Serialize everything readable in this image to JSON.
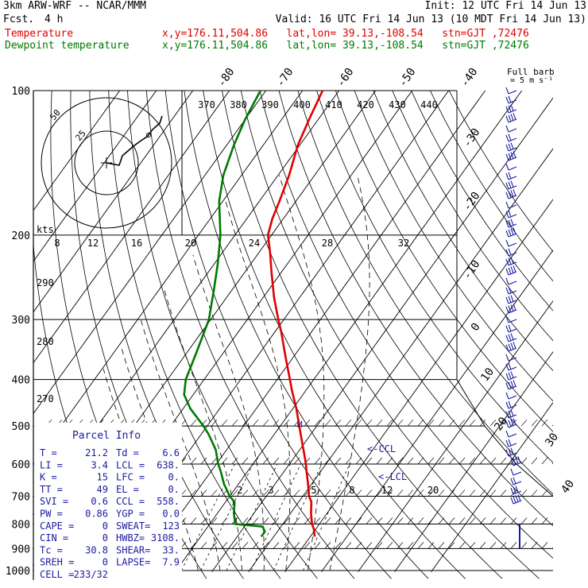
{
  "header": {
    "model": "3km ARW-WRF -- NCAR/MMM",
    "init": "Init: 12 UTC Fri 14 Jun 13",
    "fcst_label": "Fcst.",
    "fcst_value": "4 h",
    "valid": "Valid: 16 UTC Fri 14 Jun 13 (10 MDT Fri 14 Jun 13)",
    "line_temp": {
      "name": "Temperature",
      "loc": "x,y=176.11,504.86   lat,lon= 39.13,-108.54   stn=GJT ,72476"
    },
    "line_dew": {
      "name": "Dewpoint temperature",
      "loc": "x,y=176.11,504.86   lat,lon= 39.13,-108.54   stn=GJT ,72476"
    },
    "colors": {
      "temperature": "#e00000",
      "dewpoint": "#007a00",
      "wind": "#1a1aa0"
    }
  },
  "chart_data": {
    "type": "line",
    "title": "",
    "xlabel": "",
    "ylabel": "",
    "y_scale": "log-pressure",
    "pressure_ticks": [
      100,
      200,
      300,
      400,
      500,
      600,
      700,
      800,
      900,
      1000
    ],
    "pressure_tick_labels": [
      "100",
      "200",
      "300",
      "400",
      "500",
      "600",
      "700",
      "800",
      "900",
      "1000"
    ],
    "isotherm_labels_top": [
      "-80",
      "-70",
      "-60",
      "-50",
      "-40"
    ],
    "isotherm_labels_right": [
      "-30",
      "-20",
      "-10",
      "0",
      "10",
      "20",
      "30",
      "40"
    ],
    "theta_e_labels": [
      "370",
      "380",
      "390",
      "400",
      "410",
      "420",
      "430",
      "440"
    ],
    "dry_adiabat_labels": [
      "290",
      "280",
      "270"
    ],
    "mixing_ratio_labels": [
      "2",
      "3",
      "5",
      "8",
      "12",
      "20"
    ],
    "hodograph": {
      "unit_label": "kts",
      "ring_labels": [
        "25",
        "50"
      ],
      "scale_labels": [
        "8",
        "12",
        "16",
        "20",
        "24",
        "28",
        "32"
      ]
    },
    "series": [
      {
        "name": "Temperature",
        "pressure": [
          850,
          820,
          800,
          760,
          720,
          700,
          660,
          620,
          600,
          560,
          520,
          500,
          460,
          420,
          400,
          360,
          320,
          300,
          270,
          240,
          215,
          200,
          185,
          170,
          150,
          130,
          115,
          100
        ],
        "temperature": [
          21.2,
          19.5,
          18.0,
          15.6,
          13.5,
          11.7,
          9.0,
          6.0,
          4.5,
          1.0,
          -2.8,
          -4.8,
          -9.0,
          -14.0,
          -16.5,
          -22.0,
          -28.0,
          -31.5,
          -37.0,
          -42.5,
          -47.5,
          -51.0,
          -53.0,
          -54.5,
          -57.0,
          -60.5,
          -62.5,
          -64.5
        ]
      },
      {
        "name": "Dewpoint temperature",
        "pressure": [
          850,
          830,
          810,
          800,
          760,
          720,
          700,
          660,
          620,
          600,
          560,
          520,
          500,
          460,
          430,
          400,
          350,
          300,
          260,
          230,
          200,
          170,
          150,
          130,
          115,
          100
        ],
        "temperature": [
          6.6,
          6.6,
          5.0,
          -3.0,
          -5.5,
          -7.5,
          -10.0,
          -14.0,
          -17.5,
          -19.5,
          -23.0,
          -28.0,
          -31.0,
          -38.0,
          -42.5,
          -45.0,
          -47.5,
          -50.5,
          -55.0,
          -59.0,
          -64.0,
          -71.0,
          -75.0,
          -78.0,
          -80.0,
          -81.5
        ]
      }
    ],
    "markers": [
      {
        "label": "<-CCL",
        "pressure": 558
      },
      {
        "label": "<-LCL",
        "pressure": 638
      },
      {
        "label": "M",
        "pressure": 500
      }
    ]
  },
  "wind_barbs": {
    "full_barb_label": "Full barb",
    "unit_label": "= 5 m s⁻¹"
  },
  "parcel_info": {
    "title": "Parcel Info",
    "rows": [
      [
        "T  =",
        "21.2",
        "Td =",
        "6.6"
      ],
      [
        "LI =",
        "3.4",
        "LCL =",
        "638."
      ],
      [
        "K  =",
        "15",
        "LFC =",
        "0."
      ],
      [
        "TT =",
        "49",
        "EL  =",
        "0."
      ],
      [
        "SVI =",
        "0.6",
        "CCL =",
        "558."
      ],
      [
        "PW =",
        "0.86",
        "YGP =",
        "0.0"
      ],
      [
        "CAPE =",
        "0",
        "SWEAT=",
        "123"
      ],
      [
        "CIN =",
        "0",
        "HWBZ=",
        "3108."
      ],
      [
        "Tc =",
        "30.8",
        "SHEAR=",
        "33."
      ],
      [
        "SREH =",
        "0",
        "LAPSE=",
        "7.9"
      ],
      [
        "CELL =",
        "233/32",
        "",
        ""
      ]
    ]
  }
}
